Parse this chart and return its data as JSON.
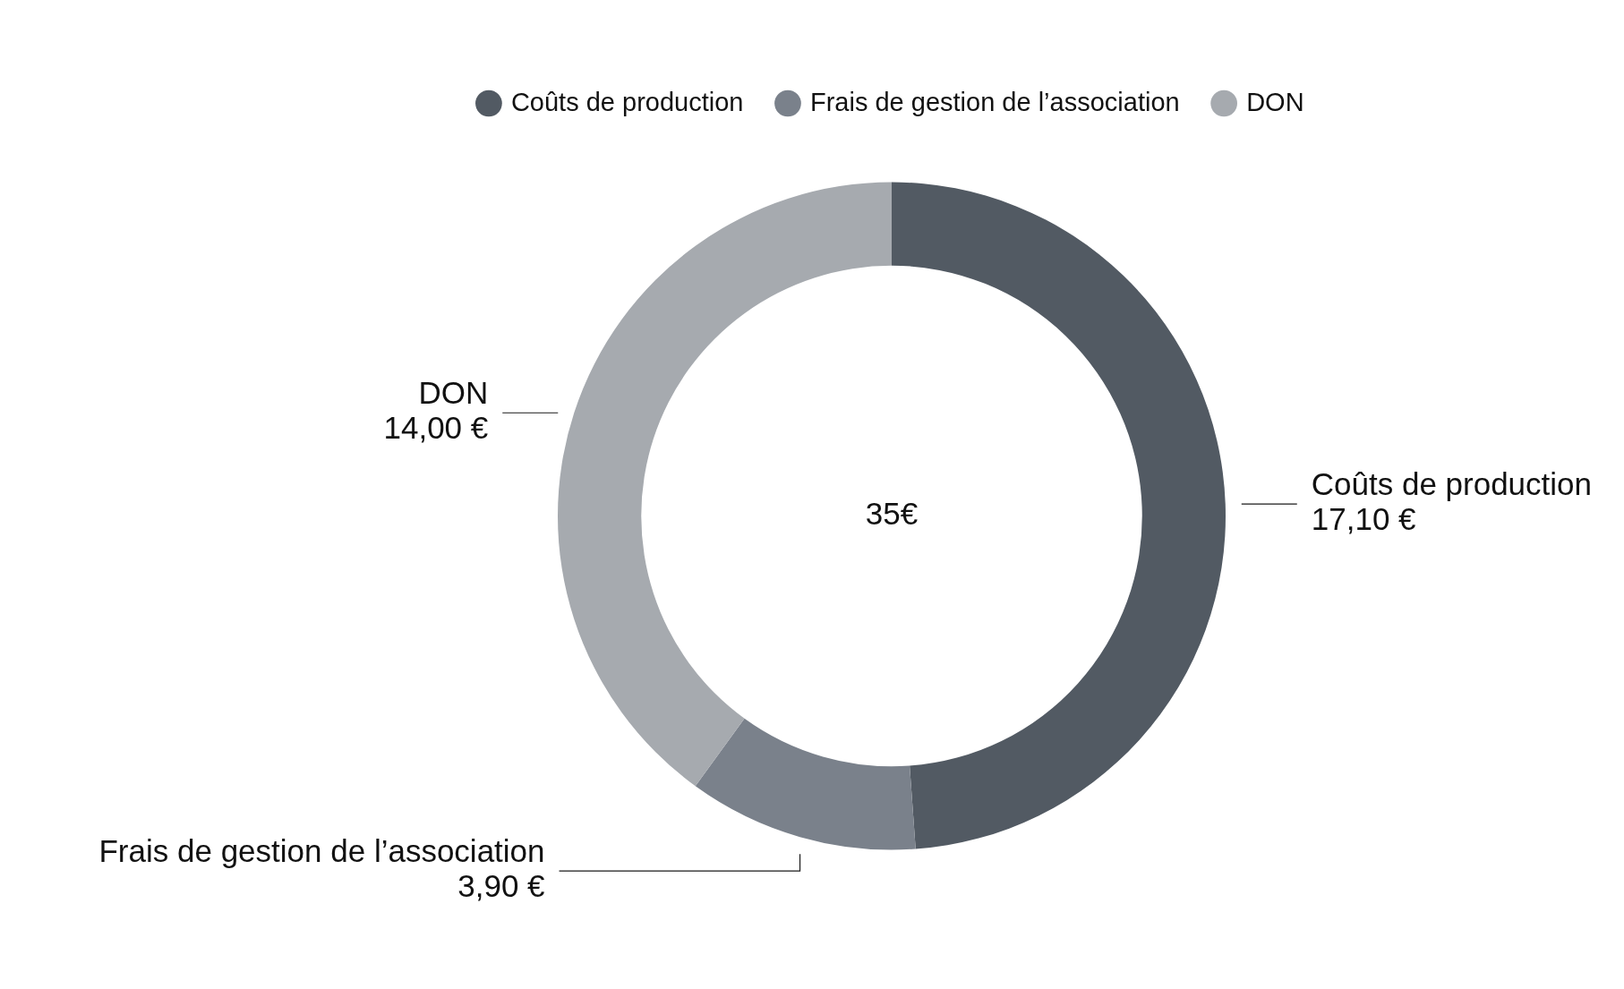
{
  "chart_data": {
    "type": "donut",
    "categories": [
      "Coûts de production",
      "Frais de gestion de l’association",
      "DON"
    ],
    "values": [
      17.1,
      3.9,
      14.0
    ],
    "colors": [
      "#525a63",
      "#7a818b",
      "#a6aaaf"
    ],
    "value_labels": [
      "17,10 €",
      "3,90 €",
      "14,00 €"
    ],
    "legend": "top",
    "annotations": [
      "35€"
    ]
  }
}
